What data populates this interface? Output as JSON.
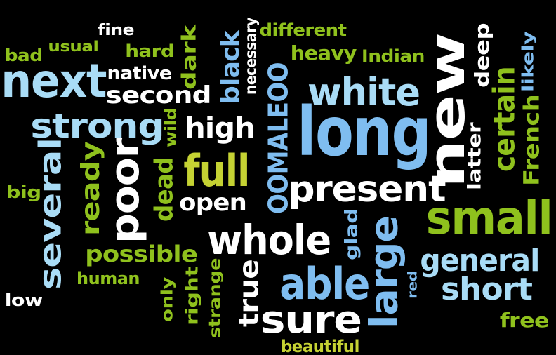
{
  "colors": {
    "background": "#000000",
    "white": "#ffffff",
    "light_blue": "#a9dcf6",
    "blue": "#7fbdf0",
    "green": "#8fc11d",
    "olive": "#c5d233"
  },
  "words": [
    {
      "text": "long",
      "color": "#7fbdf0"
    },
    {
      "text": "new",
      "color": "#ffffff"
    },
    {
      "text": "white",
      "color": "#a9dcf6"
    },
    {
      "text": "next",
      "color": "#a9dcf6"
    },
    {
      "text": "strong",
      "color": "#a9dcf6"
    },
    {
      "text": "full",
      "color": "#c5d233"
    },
    {
      "text": "small",
      "color": "#8fc11d"
    },
    {
      "text": "present",
      "color": "#ffffff"
    },
    {
      "text": "whole",
      "color": "#ffffff"
    },
    {
      "text": "able",
      "color": "#7fbdf0"
    },
    {
      "text": "sure",
      "color": "#ffffff"
    },
    {
      "text": "large",
      "color": "#7fbdf0"
    },
    {
      "text": "poor",
      "color": "#ffffff"
    },
    {
      "text": "several",
      "color": "#a9dcf6"
    },
    {
      "text": "OOMALEOO",
      "color": "#7fbdf0"
    },
    {
      "text": "certain",
      "color": "#8fc11d"
    },
    {
      "text": "general",
      "color": "#a9dcf6"
    },
    {
      "text": "short",
      "color": "#a9dcf6"
    },
    {
      "text": "second",
      "color": "#ffffff"
    },
    {
      "text": "high",
      "color": "#ffffff"
    },
    {
      "text": "black",
      "color": "#7fbdf0"
    },
    {
      "text": "possible",
      "color": "#8fc11d"
    },
    {
      "text": "ready",
      "color": "#8fc11d"
    },
    {
      "text": "dead",
      "color": "#8fc11d"
    },
    {
      "text": "true",
      "color": "#ffffff"
    },
    {
      "text": "open",
      "color": "#ffffff"
    },
    {
      "text": "heavy",
      "color": "#8fc11d"
    },
    {
      "text": "French",
      "color": "#8fc11d"
    },
    {
      "text": "native",
      "color": "#ffffff"
    },
    {
      "text": "Indian",
      "color": "#8fc11d"
    },
    {
      "text": "different",
      "color": "#8fc11d"
    },
    {
      "text": "deep",
      "color": "#ffffff"
    },
    {
      "text": "dark",
      "color": "#8fc11d"
    },
    {
      "text": "necessary",
      "color": "#ffffff"
    },
    {
      "text": "latter",
      "color": "#ffffff"
    },
    {
      "text": "likely",
      "color": "#7fbdf0"
    },
    {
      "text": "glad",
      "color": "#7fbdf0"
    },
    {
      "text": "free",
      "color": "#8fc11d"
    },
    {
      "text": "right",
      "color": "#8fc11d"
    },
    {
      "text": "strange",
      "color": "#8fc11d"
    },
    {
      "text": "human",
      "color": "#8fc11d"
    },
    {
      "text": "hard",
      "color": "#8fc11d"
    },
    {
      "text": "fine",
      "color": "#ffffff"
    },
    {
      "text": "usual",
      "color": "#8fc11d"
    },
    {
      "text": "bad",
      "color": "#8fc11d"
    },
    {
      "text": "big",
      "color": "#8fc11d"
    },
    {
      "text": "low",
      "color": "#ffffff"
    },
    {
      "text": "only",
      "color": "#8fc11d"
    },
    {
      "text": "red",
      "color": "#7fbdf0"
    },
    {
      "text": "wild",
      "color": "#8fc11d"
    },
    {
      "text": "beautiful",
      "color": "#c5d233"
    }
  ]
}
